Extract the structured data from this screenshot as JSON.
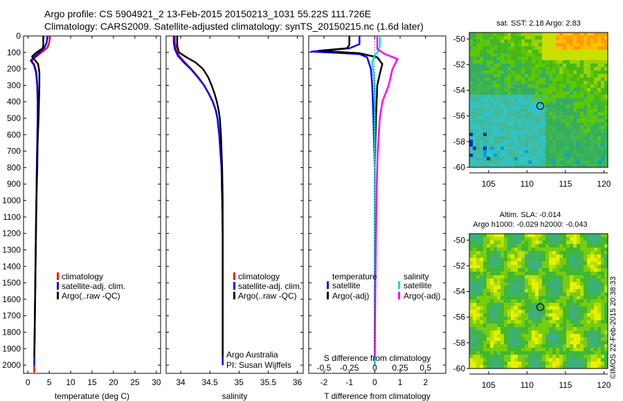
{
  "figure": {
    "title_line1": "Argo profile: CS 5904921_2 13-Feb-2015 20150213_1031 55.22S 111.726E",
    "title_line2": "Climatology: CARS2009. Satellite-adjusted climatology: synTS_20150215.nc (1.6d later)",
    "credit": "©IMOS 22-Feb-2015 20:38:33",
    "argo_note_line1": "Argo Australia",
    "argo_note_line2": "PI: Susan Wijffels"
  },
  "colors": {
    "climatology": "#ff0000",
    "satellite": "#0000ff",
    "argo": "#000000",
    "salinity_satellite": "#00e0e0",
    "salinity_argo": "#ff00ff"
  },
  "chart_data": [
    {
      "type": "line",
      "id": "temperature",
      "xlabel": "temperature (deg C)",
      "xlim": [
        -1,
        31
      ],
      "xticks": [
        0,
        5,
        10,
        15,
        20,
        25,
        30
      ],
      "ylim": [
        0,
        2050
      ],
      "yticks": [
        0,
        100,
        200,
        300,
        400,
        500,
        600,
        700,
        800,
        900,
        1000,
        1100,
        1200,
        1300,
        1400,
        1500,
        1600,
        1700,
        1800,
        1900,
        2000
      ],
      "legend": [
        "climatology",
        "satellite-adj. clim.",
        "Argo(..raw -QC)"
      ],
      "series": [
        {
          "name": "climatology",
          "color": "#ff0000",
          "points": [
            [
              5.2,
              0
            ],
            [
              5.0,
              40
            ],
            [
              4.6,
              70
            ],
            [
              3.2,
              100
            ],
            [
              1.5,
              135
            ],
            [
              0.9,
              150
            ],
            [
              1.5,
              175
            ],
            [
              2.0,
              220
            ],
            [
              2.2,
              300
            ],
            [
              2.3,
              400
            ],
            [
              2.3,
              500
            ],
            [
              2.2,
              650
            ],
            [
              2.1,
              800
            ],
            [
              2.0,
              1000
            ],
            [
              1.9,
              1200
            ],
            [
              1.8,
              1400
            ],
            [
              1.7,
              1600
            ],
            [
              1.6,
              1800
            ],
            [
              1.5,
              2000
            ],
            [
              1.5,
              2045
            ]
          ]
        },
        {
          "name": "satellite-adj. clim.",
          "color": "#0000ff",
          "points": [
            [
              4.6,
              0
            ],
            [
              4.4,
              40
            ],
            [
              3.9,
              70
            ],
            [
              2.7,
              100
            ],
            [
              1.2,
              135
            ],
            [
              0.7,
              150
            ],
            [
              1.4,
              175
            ],
            [
              1.9,
              220
            ],
            [
              2.2,
              300
            ],
            [
              2.3,
              400
            ],
            [
              2.3,
              500
            ],
            [
              2.2,
              650
            ],
            [
              2.1,
              800
            ],
            [
              2.0,
              1000
            ],
            [
              1.9,
              1200
            ],
            [
              1.8,
              1400
            ],
            [
              1.7,
              1600
            ],
            [
              1.6,
              1800
            ],
            [
              1.5,
              2000
            ]
          ]
        },
        {
          "name": "Argo(..raw -QC)",
          "color": "#000000",
          "points": [
            [
              3.6,
              0
            ],
            [
              3.6,
              55
            ],
            [
              3.5,
              75
            ],
            [
              2.6,
              90
            ],
            [
              1.8,
              105
            ],
            [
              1.0,
              125
            ],
            [
              1.6,
              145
            ],
            [
              2.4,
              170
            ],
            [
              2.7,
              220
            ],
            [
              2.7,
              300
            ],
            [
              2.6,
              400
            ],
            [
              2.5,
              500
            ],
            [
              2.3,
              650
            ],
            [
              2.2,
              800
            ],
            [
              2.0,
              1000
            ],
            [
              1.9,
              1200
            ],
            [
              1.8,
              1400
            ],
            [
              1.7,
              1600
            ],
            [
              1.6,
              1800
            ],
            [
              1.5,
              1950
            ]
          ]
        }
      ]
    },
    {
      "type": "line",
      "id": "salinity",
      "xlabel": "salinity",
      "xlim": [
        33.75,
        36.1
      ],
      "xticks": [
        34,
        34.5,
        35,
        35.5,
        36
      ],
      "ylim": [
        0,
        2050
      ],
      "legend": [
        "climatology",
        "satellite-adj. clim.",
        "Argo(..raw -QC)"
      ],
      "series": [
        {
          "name": "climatology",
          "color": "#ff0000",
          "points": [
            [
              33.9,
              0
            ],
            [
              33.9,
              40
            ],
            [
              33.92,
              80
            ],
            [
              33.97,
              120
            ],
            [
              34.07,
              160
            ],
            [
              34.18,
              200
            ],
            [
              34.3,
              250
            ],
            [
              34.4,
              300
            ],
            [
              34.48,
              350
            ],
            [
              34.55,
              400
            ],
            [
              34.6,
              450
            ],
            [
              34.63,
              500
            ],
            [
              34.66,
              600
            ],
            [
              34.68,
              700
            ],
            [
              34.7,
              800
            ],
            [
              34.71,
              1000
            ],
            [
              34.72,
              1200
            ],
            [
              34.72,
              1500
            ],
            [
              34.72,
              1800
            ],
            [
              34.72,
              2000
            ]
          ]
        },
        {
          "name": "satellite-adj. clim.",
          "color": "#0000ff",
          "points": [
            [
              33.88,
              0
            ],
            [
              33.88,
              40
            ],
            [
              33.9,
              80
            ],
            [
              33.95,
              120
            ],
            [
              34.05,
              160
            ],
            [
              34.17,
              200
            ],
            [
              34.29,
              250
            ],
            [
              34.4,
              300
            ],
            [
              34.48,
              350
            ],
            [
              34.55,
              400
            ],
            [
              34.6,
              450
            ],
            [
              34.63,
              500
            ],
            [
              34.66,
              600
            ],
            [
              34.68,
              700
            ],
            [
              34.7,
              800
            ],
            [
              34.71,
              1000
            ],
            [
              34.72,
              1200
            ],
            [
              34.72,
              1500
            ],
            [
              34.72,
              1800
            ],
            [
              34.72,
              2000
            ]
          ]
        },
        {
          "name": "Argo(..raw -QC)",
          "color": "#000000",
          "points": [
            [
              33.94,
              0
            ],
            [
              33.94,
              60
            ],
            [
              33.97,
              100
            ],
            [
              34.1,
              130
            ],
            [
              34.25,
              160
            ],
            [
              34.38,
              200
            ],
            [
              34.47,
              250
            ],
            [
              34.53,
              300
            ],
            [
              34.58,
              350
            ],
            [
              34.62,
              400
            ],
            [
              34.65,
              450
            ],
            [
              34.67,
              500
            ],
            [
              34.69,
              600
            ],
            [
              34.7,
              700
            ],
            [
              34.71,
              800
            ],
            [
              34.72,
              1000
            ],
            [
              34.72,
              1200
            ],
            [
              34.72,
              1500
            ],
            [
              34.72,
              1800
            ],
            [
              34.72,
              1950
            ]
          ]
        }
      ]
    },
    {
      "type": "line",
      "id": "difference",
      "xlabel": "T difference from climatology",
      "xlabel_top": "S difference from climatology",
      "xlim": [
        -2.6,
        2.8
      ],
      "xticks": [
        -2,
        -1,
        0,
        1,
        2
      ],
      "xticks_top": [
        -0.5,
        -0.25,
        0,
        0.25,
        0.5
      ],
      "ylim": [
        0,
        2050
      ],
      "legend_headers": [
        "temperature",
        "salinity"
      ],
      "legend": [
        "satellite",
        "Argo(-adj)",
        "satellite",
        "Argo(-adj)"
      ],
      "series": [
        {
          "name": "temperature satellite",
          "color": "#0000ff",
          "points": [
            [
              -0.6,
              0
            ],
            [
              -0.6,
              50
            ],
            [
              -1.0,
              75
            ],
            [
              -2.5,
              95
            ],
            [
              -0.6,
              110
            ],
            [
              -0.3,
              130
            ],
            [
              -0.15,
              200
            ],
            [
              -0.1,
              300
            ],
            [
              -0.05,
              500
            ],
            [
              0,
              800
            ],
            [
              0,
              1200
            ],
            [
              0,
              1600
            ],
            [
              0,
              2000
            ]
          ]
        },
        {
          "name": "temperature Argo(-adj)",
          "color": "#000000",
          "points": [
            [
              -1.0,
              0
            ],
            [
              -1.0,
              55
            ],
            [
              -1.1,
              75
            ],
            [
              -2.2,
              90
            ],
            [
              -0.6,
              105
            ],
            [
              0.1,
              130
            ],
            [
              0.3,
              170
            ],
            [
              0.2,
              230
            ],
            [
              0.1,
              300
            ],
            [
              0.05,
              500
            ],
            [
              0,
              800
            ],
            [
              0,
              1200
            ],
            [
              0,
              1600
            ],
            [
              0,
              1950
            ]
          ]
        },
        {
          "name": "salinity satellite",
          "color": "#00e0e0",
          "points": [
            [
              0.2,
              0
            ],
            [
              0.2,
              60
            ],
            [
              0.15,
              90
            ],
            [
              0.0,
              120
            ],
            [
              -0.1,
              160
            ],
            [
              -0.05,
              220
            ],
            [
              0,
              300
            ],
            [
              0,
              500
            ],
            [
              0,
              800
            ],
            [
              0,
              1200
            ],
            [
              0,
              1600
            ],
            [
              0,
              2000
            ]
          ]
        },
        {
          "name": "salinity Argo(-adj)",
          "color": "#ff00ff",
          "points": [
            [
              0.1,
              0
            ],
            [
              0.1,
              80
            ],
            [
              0.4,
              110
            ],
            [
              0.9,
              140
            ],
            [
              0.7,
              200
            ],
            [
              0.55,
              300
            ],
            [
              0.3,
              400
            ],
            [
              0.2,
              500
            ],
            [
              0.12,
              700
            ],
            [
              0.08,
              900
            ],
            [
              0.05,
              1200
            ],
            [
              0.02,
              1600
            ],
            [
              0,
              1950
            ]
          ]
        }
      ]
    },
    {
      "type": "heatmap",
      "id": "sst_map",
      "title": "sat. SST: 2.18 Argo: 2.83",
      "xticks": [
        105,
        110,
        115,
        120
      ],
      "yticks": [
        -50,
        -52,
        -54,
        -56,
        -58,
        -60
      ],
      "xlim": [
        102.5,
        120.5
      ],
      "ylim": [
        -60,
        -49.5
      ],
      "marker": [
        111.726,
        -55.22
      ]
    },
    {
      "type": "heatmap",
      "id": "sla_map",
      "title_line1": "Altim. SLA: -0.014",
      "title_line2": "Argo h1000: -0.029 h2000: -0.043",
      "xticks": [
        105,
        110,
        115,
        120
      ],
      "yticks": [
        -50,
        -52,
        -54,
        -56,
        -58,
        -60
      ],
      "xlim": [
        102.5,
        120.5
      ],
      "ylim": [
        -60,
        -49.5
      ],
      "marker": [
        111.726,
        -55.22
      ]
    }
  ]
}
